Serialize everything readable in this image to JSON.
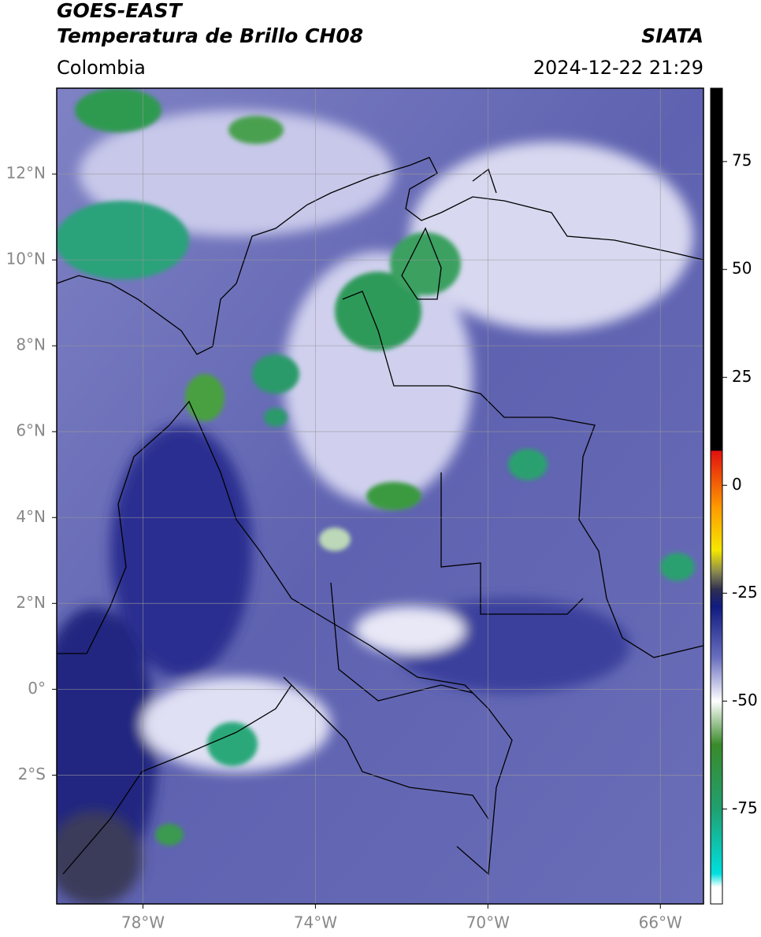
{
  "header": {
    "title": "GOES-EAST",
    "subtitle": "Temperatura de Brillo CH08",
    "region": "Colombia",
    "source": "SIATA",
    "timestamp": "2024-12-22 21:29"
  },
  "map": {
    "xlim": [
      -80,
      -65
    ],
    "ylim": [
      -5,
      14
    ],
    "grid": true,
    "xticks": [
      {
        "value": -78,
        "label": "78°W"
      },
      {
        "value": -74,
        "label": "74°W"
      },
      {
        "value": -70,
        "label": "70°W"
      },
      {
        "value": -66,
        "label": "66°W"
      }
    ],
    "yticks": [
      {
        "value": 12,
        "label": "12°N"
      },
      {
        "value": 10,
        "label": "10°N"
      },
      {
        "value": 8,
        "label": "8°N"
      },
      {
        "value": 6,
        "label": "6°N"
      },
      {
        "value": 4,
        "label": "4°N"
      },
      {
        "value": 2,
        "label": "2°N"
      },
      {
        "value": 0,
        "label": "0°"
      },
      {
        "value": -2,
        "label": "2°S"
      }
    ]
  },
  "colorbar": {
    "lim": [
      -97,
      92
    ],
    "ticks": [
      75,
      50,
      25,
      0,
      -25,
      -50,
      -75
    ],
    "stops": [
      {
        "value": 92,
        "color": "#000000"
      },
      {
        "value": 8,
        "color": "#000000"
      },
      {
        "value": 8,
        "color": "#e01010"
      },
      {
        "value": -5,
        "color": "#ff9900"
      },
      {
        "value": -15,
        "color": "#f5e800"
      },
      {
        "value": -20,
        "color": "#8a8a50"
      },
      {
        "value": -24,
        "color": "#303050"
      },
      {
        "value": -28,
        "color": "#101a80"
      },
      {
        "value": -40,
        "color": "#6a6fc0"
      },
      {
        "value": -50,
        "color": "#ffffff"
      },
      {
        "value": -60,
        "color": "#3a8a2a"
      },
      {
        "value": -75,
        "color": "#20a070"
      },
      {
        "value": -90,
        "color": "#00e0e0"
      },
      {
        "value": -93,
        "color": "#ffffff"
      },
      {
        "value": -97,
        "color": "#ffffff"
      }
    ]
  }
}
